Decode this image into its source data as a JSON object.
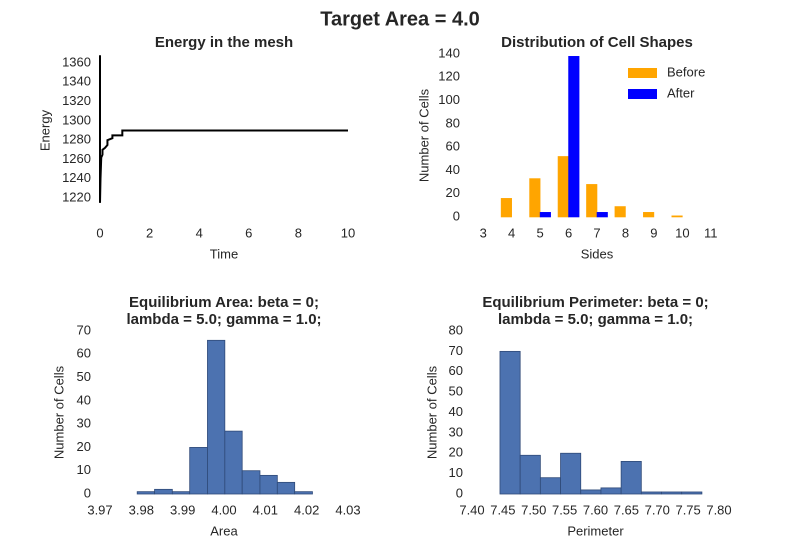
{
  "title": "Target Area = 4.0",
  "chart_data": [
    {
      "type": "line",
      "title": [
        "Energy in the mesh"
      ],
      "xlabel": "Time",
      "ylabel": "Energy",
      "x": [
        0,
        0,
        0.02,
        0.05,
        0.1,
        0.1,
        0.2,
        0.3,
        0.3,
        0.5,
        0.5,
        0.9,
        0.9,
        10
      ],
      "series": [
        {
          "color": "#000000",
          "values": [
            1368,
            1215,
            1240,
            1262,
            1265,
            1270,
            1272,
            1275,
            1280,
            1282,
            1285,
            1285,
            1290,
            1290
          ]
        }
      ],
      "xlim": [
        0,
        10
      ],
      "xticks": [
        0,
        2,
        4,
        6,
        8,
        10
      ],
      "ylim": [
        1205,
        1375
      ],
      "yticks": [
        1220,
        1240,
        1260,
        1280,
        1300,
        1320,
        1340,
        1360
      ]
    },
    {
      "type": "bar",
      "title": [
        "Distribution of Cell Shapes"
      ],
      "xlabel": "Sides",
      "ylabel": "Number of Cells",
      "categories": [
        "3",
        "4",
        "5",
        "6",
        "7",
        "8",
        "9",
        "10",
        "11"
      ],
      "series": [
        {
          "name": "Before",
          "color": "#ffa500",
          "values": [
            0,
            16,
            33,
            52,
            28,
            9,
            4,
            1,
            0
          ]
        },
        {
          "name": "After",
          "color": "#0000ff",
          "values": [
            0,
            0,
            4,
            138,
            4,
            0,
            0,
            0,
            0
          ]
        }
      ],
      "ylim": [
        0,
        140
      ],
      "yticks": [
        0,
        20,
        40,
        60,
        80,
        100,
        120,
        140
      ],
      "legend": "upper right"
    },
    {
      "type": "histogram",
      "title": [
        "Equilibrium Area: beta = 0;",
        "lambda = 5.0; gamma = 1.0;"
      ],
      "xlabel": "Area",
      "ylabel": "Number of Cells",
      "bins": [
        3.979,
        3.9832,
        3.9875,
        3.9917,
        3.996,
        4.0002,
        4.0044,
        4.0087,
        4.0129,
        4.0171,
        4.0214
      ],
      "values": [
        1,
        2,
        1,
        20,
        66,
        27,
        10,
        8,
        5,
        1
      ],
      "color": "#4c72b0",
      "xlim": [
        3.97,
        4.03
      ],
      "xticks": [
        3.97,
        3.98,
        3.99,
        {
          "value": 4,
          "label": "4.00"
        },
        4.01,
        4.02,
        4.03
      ],
      "ylim": [
        0,
        70
      ],
      "yticks": [
        0,
        10,
        20,
        30,
        40,
        50,
        60,
        70
      ]
    },
    {
      "type": "histogram",
      "title": [
        "Equilibrium Perimeter: beta = 0;",
        "lambda = 5.0; gamma = 1.0;"
      ],
      "xlabel": "Perimeter",
      "ylabel": "Number of Cells",
      "bins": [
        7.4453,
        7.478,
        7.5107,
        7.5434,
        7.5761,
        7.6088,
        7.6415,
        7.6742,
        7.7069,
        7.7396,
        7.7723
      ],
      "values": [
        70,
        19,
        8,
        20,
        2,
        3,
        16,
        1,
        1,
        1
      ],
      "color": "#4c72b0",
      "xlim": [
        7.4,
        7.8
      ],
      "xticks": [
        {
          "value": 7.4,
          "label": "7.40"
        },
        7.45,
        {
          "value": 7.5,
          "label": "7.50"
        },
        7.55,
        {
          "value": 7.6,
          "label": "7.60"
        },
        7.65,
        {
          "value": 7.7,
          "label": "7.70"
        },
        7.75,
        {
          "value": 7.8,
          "label": "7.80"
        }
      ],
      "ylim": [
        0,
        80
      ],
      "yticks": [
        0,
        10,
        20,
        30,
        40,
        50,
        60,
        70,
        80
      ]
    }
  ]
}
